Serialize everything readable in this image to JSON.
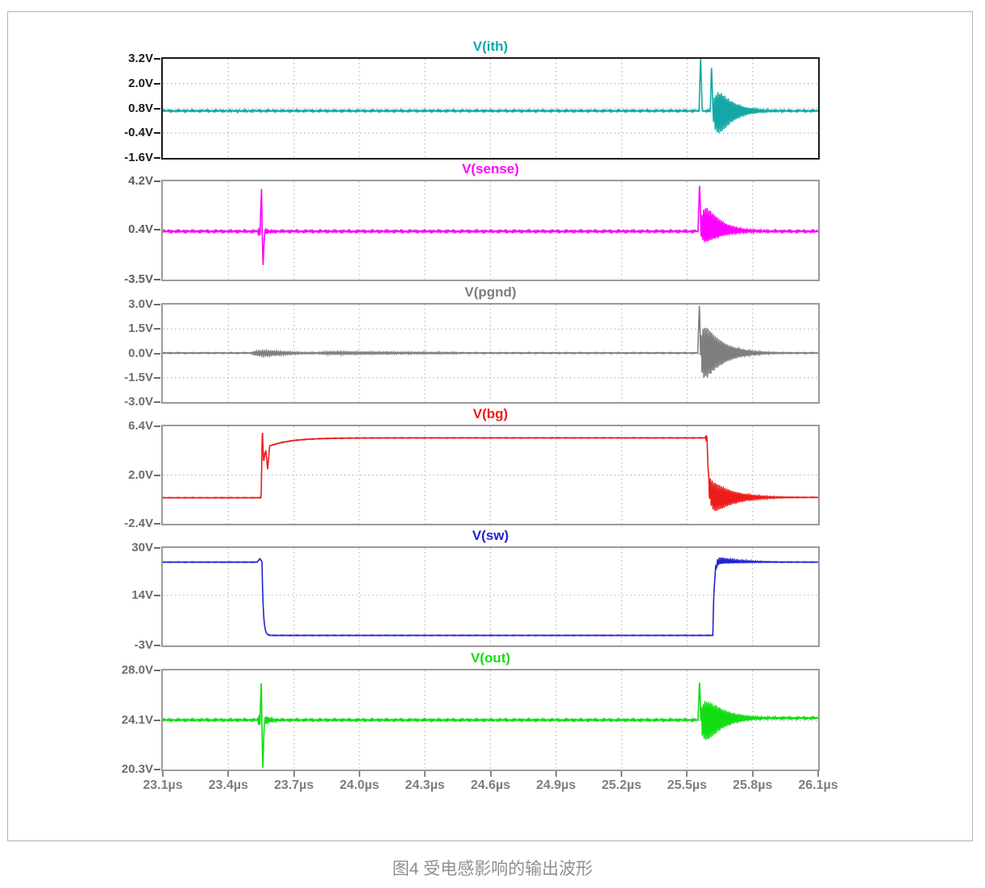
{
  "figure": {
    "caption": "图4 受电感影响的输出波形"
  },
  "chart_data": {
    "type": "line",
    "title": "",
    "x": {
      "unit": "µs",
      "min": 23.1,
      "max": 26.1,
      "tick_step": 0.3,
      "tick_labels": [
        "23.1µs",
        "23.4µs",
        "23.7µs",
        "24.0µs",
        "24.3µs",
        "24.6µs",
        "24.9µs",
        "25.2µs",
        "25.5µs",
        "25.8µs",
        "26.1µs"
      ]
    },
    "grid": "dotted",
    "legend_position": "panel-titles-above",
    "panels": [
      {
        "name": "V(ith)",
        "color": "#14A7A7",
        "label_color": "#1b1b1b",
        "border_color": "#1a1a1a",
        "y_min": -1.6,
        "y_max": 3.2,
        "ticks": [
          {
            "v": 3.2,
            "label": "3.2V"
          },
          {
            "v": 2.0,
            "label": "2.0V"
          },
          {
            "v": 0.8,
            "label": "0.8V"
          },
          {
            "v": -0.4,
            "label": "-0.4V"
          },
          {
            "v": -1.6,
            "label": "-1.6V"
          }
        ],
        "grid_v": [
          2.0,
          0.8,
          -0.4
        ],
        "signal": {
          "noise": 0.028,
          "levels": [
            {
              "t": 23.1,
              "v": 0.68
            }
          ],
          "spikes": [
            {
              "t": 25.562,
              "v": 3.35,
              "w": 0.007
            },
            {
              "t": 25.612,
              "v": 2.95,
              "w": 0.006
            }
          ],
          "bursts": [
            {
              "t0": 23.36,
              "t1": 23.66,
              "up": 0.07,
              "dn": 0.09,
              "f": 70,
              "attack": 0.06,
              "decay": 0.1
            },
            {
              "t0": 25.615,
              "t1": 25.99,
              "up": 1.85,
              "dn": 2.25,
              "f": 125,
              "attack": 0.02,
              "decay": 0.065
            }
          ]
        }
      },
      {
        "name": "V(sense)",
        "color": "#FF00FF",
        "label_color": "#5f5f5f",
        "border_color": "#9a9a9a",
        "y_min": -3.5,
        "y_max": 4.2,
        "ticks": [
          {
            "v": 4.2,
            "label": "4.2V"
          },
          {
            "v": 0.4,
            "label": "0.4V"
          },
          {
            "v": -3.5,
            "label": "-3.5V"
          }
        ],
        "grid_v": [
          0.4
        ],
        "signal": {
          "noise": 0.05,
          "levels": [
            {
              "t": 23.1,
              "v": 0.28
            }
          ],
          "spikes": [
            {
              "t": 23.552,
              "v": 3.8,
              "w": 0.007
            },
            {
              "t": 23.559,
              "v": -2.35,
              "w": 0.007
            },
            {
              "t": 25.557,
              "v": 4.05,
              "w": 0.007
            }
          ],
          "bursts": [
            {
              "t0": 23.532,
              "t1": 23.605,
              "up": 0.5,
              "dn": 0.7,
              "f": 140,
              "attack": 0.008,
              "decay": 0.03
            },
            {
              "t0": 25.558,
              "t1": 26.0,
              "up": 3.55,
              "dn": 1.55,
              "f": 125,
              "attack": 0.018,
              "decay": 0.07
            }
          ]
        }
      },
      {
        "name": "V(pgnd)",
        "color": "#7E7E7E",
        "label_color": "#6d6d6d",
        "border_color": "#9a9a9a",
        "y_min": -3.0,
        "y_max": 3.0,
        "ticks": [
          {
            "v": 3.0,
            "label": "3.0V"
          },
          {
            "v": 1.5,
            "label": "1.5V"
          },
          {
            "v": 0.0,
            "label": "0.0V"
          },
          {
            "v": -1.5,
            "label": "-1.5V"
          },
          {
            "v": -3.0,
            "label": "-3.0V"
          }
        ],
        "grid_v": [
          1.5,
          0.0,
          -1.5
        ],
        "signal": {
          "noise": 0.02,
          "levels": [
            {
              "t": 23.1,
              "v": 0.02
            }
          ],
          "spikes": [
            {
              "t": 25.556,
              "v": 2.95,
              "w": 0.007
            }
          ],
          "bursts": [
            {
              "t0": 23.5,
              "t1": 23.95,
              "up": 0.46,
              "dn": 0.6,
              "f": 110,
              "attack": 0.07,
              "decay": 0.1
            },
            {
              "t0": 23.8,
              "t1": 24.45,
              "up": 0.1,
              "dn": 0.1,
              "f": 110,
              "attack": 0.05,
              "decay": 0.6
            },
            {
              "t0": 25.555,
              "t1": 26.02,
              "up": 2.7,
              "dn": 2.6,
              "f": 125,
              "attack": 0.015,
              "decay": 0.08
            }
          ]
        }
      },
      {
        "name": "V(bg)",
        "color": "#EE1B1B",
        "label_color": "#6d6d6d",
        "border_color": "#9a9a9a",
        "y_min": -2.4,
        "y_max": 6.4,
        "ticks": [
          {
            "v": 6.4,
            "label": "6.4V"
          },
          {
            "v": 2.0,
            "label": "2.0V"
          },
          {
            "v": -2.4,
            "label": "-2.4V"
          }
        ],
        "grid_v": [
          2.0
        ],
        "signal": {
          "noise": 0.02,
          "levels": [
            {
              "t": 23.1,
              "v": -0.05
            },
            {
              "t": 23.553,
              "v": 4.7,
              "tau": 0.008
            },
            {
              "t": 23.6,
              "v": 5.35,
              "tau": 0.1
            },
            {
              "t": 25.585,
              "v": -0.02,
              "tau": 0.01
            }
          ],
          "spikes": [
            {
              "t": 23.556,
              "v": 6.2,
              "w": 0.006
            },
            {
              "t": 23.58,
              "v": 2.5,
              "w": 0.009
            },
            {
              "t": 25.59,
              "v": 5.65,
              "w": 0.008
            }
          ],
          "bursts": [
            {
              "t0": 25.588,
              "t1": 26.05,
              "up": 2.25,
              "dn": 2.35,
              "f": 120,
              "attack": 0.02,
              "decay": 0.09
            }
          ]
        }
      },
      {
        "name": "V(sw)",
        "color": "#2222D4",
        "label_color": "#6d6d6d",
        "border_color": "#9a9a9a",
        "y_min": -3,
        "y_max": 30,
        "ticks": [
          {
            "v": 30,
            "label": "30V"
          },
          {
            "v": 14,
            "label": "14V"
          },
          {
            "v": -3,
            "label": "-3V"
          }
        ],
        "grid_v": [
          14
        ],
        "signal": {
          "noise": 0.07,
          "levels": [
            {
              "t": 23.1,
              "v": 25.2
            },
            {
              "t": 23.554,
              "v": 0.4,
              "tau": 0.006
            },
            {
              "t": 25.618,
              "v": 25.2,
              "tau": 0.006
            }
          ],
          "spikes": [
            {
              "t": 23.544,
              "v": 26.3,
              "w": 0.012
            }
          ],
          "bursts": [
            {
              "t0": 25.62,
              "t1": 26.05,
              "up": 2.4,
              "dn": 0.6,
              "f": 115,
              "attack": 0.01,
              "decay": 0.1
            }
          ]
        }
      },
      {
        "name": "V(out)",
        "color": "#12DD12",
        "label_color": "#6d6d6d",
        "border_color": "#9a9a9a",
        "y_min": 20.3,
        "y_max": 28.0,
        "ticks": [
          {
            "v": 28.0,
            "label": "28.0V"
          },
          {
            "v": 24.1,
            "label": "24.1V"
          },
          {
            "v": 20.3,
            "label": "20.3V"
          }
        ],
        "grid_v": [
          24.1
        ],
        "signal": {
          "noise": 0.05,
          "levels": [
            {
              "t": 23.1,
              "v": 24.15
            },
            {
              "t": 25.6,
              "v": 24.3,
              "tau": 0.05
            }
          ],
          "spikes": [
            {
              "t": 23.551,
              "v": 27.35,
              "w": 0.006
            },
            {
              "t": 23.558,
              "v": 20.35,
              "w": 0.007
            },
            {
              "t": 25.557,
              "v": 27.2,
              "w": 0.007
            }
          ],
          "bursts": [
            {
              "t0": 23.532,
              "t1": 23.63,
              "up": 0.8,
              "dn": 0.9,
              "f": 140,
              "attack": 0.01,
              "decay": 0.035
            },
            {
              "t0": 25.556,
              "t1": 26.03,
              "up": 2.75,
              "dn": 2.95,
              "f": 125,
              "attack": 0.02,
              "decay": 0.08
            }
          ]
        }
      }
    ]
  },
  "style": {
    "grid_color": "#bdbdbd",
    "x_label_color": "#7d7d7d",
    "caption_color": "#8f8f8f"
  }
}
